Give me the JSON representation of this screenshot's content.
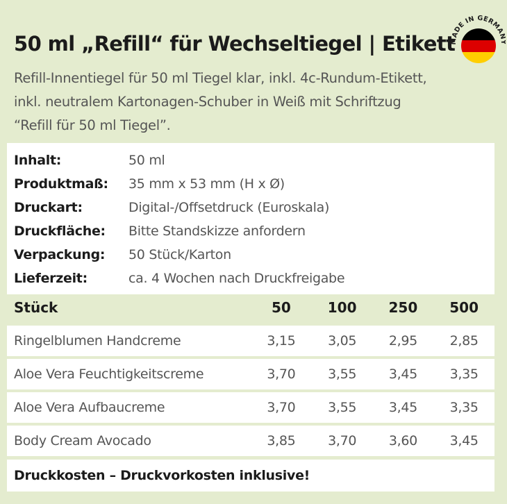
{
  "title": "50 ml „Refill“ für Wechseltiegel | Etikett",
  "badge": {
    "text": "MADE IN GERMANY",
    "flag_colors": [
      "#000000",
      "#dd0000",
      "#ffce00"
    ]
  },
  "intro": [
    "Refill-Innentiegel für 50 ml Tiegel klar, inkl. 4c-Rundum-Etikett,",
    "inkl. neutralem Kartonagen-Schuber in Weiß mit Schriftzug",
    "“Refill für 50 ml Tiegel”."
  ],
  "specs": [
    {
      "label": "Inhalt:",
      "value": "50 ml"
    },
    {
      "label": "Produktmaß:",
      "value": "35 mm x 53 mm (H x Ø)"
    },
    {
      "label": "Druckart:",
      "value": "Digital-/Offsetdruck (Euroskala)"
    },
    {
      "label": "Druckfläche:",
      "value": "Bitte Standskizze anfordern"
    },
    {
      "label": "Verpackung:",
      "value": "50 Stück/Karton"
    },
    {
      "label": "Lieferzeit:",
      "value": "ca. 4 Wochen nach Druckfreigabe"
    }
  ],
  "price_table": {
    "headers": [
      "Stück",
      "50",
      "100",
      "250",
      "500"
    ],
    "rows": [
      {
        "name": "Ringelblumen Handcreme",
        "prices": [
          "3,15",
          "3,05",
          "2,95",
          "2,85"
        ]
      },
      {
        "name": "Aloe Vera Feuchtigkeitscreme",
        "prices": [
          "3,70",
          "3,55",
          "3,45",
          "3,35"
        ]
      },
      {
        "name": "Aloe Vera Aufbaucreme",
        "prices": [
          "3,70",
          "3,55",
          "3,45",
          "3,35"
        ]
      },
      {
        "name": "Body Cream Avocado",
        "prices": [
          "3,85",
          "3,70",
          "3,60",
          "3,45"
        ]
      }
    ]
  },
  "footer": "Druckkosten – Druckvorkosten inklusive!",
  "colors": {
    "background": "#e4eccf",
    "panel": "#ffffff",
    "heading_text": "#1b1b1b",
    "body_text": "#555555"
  }
}
